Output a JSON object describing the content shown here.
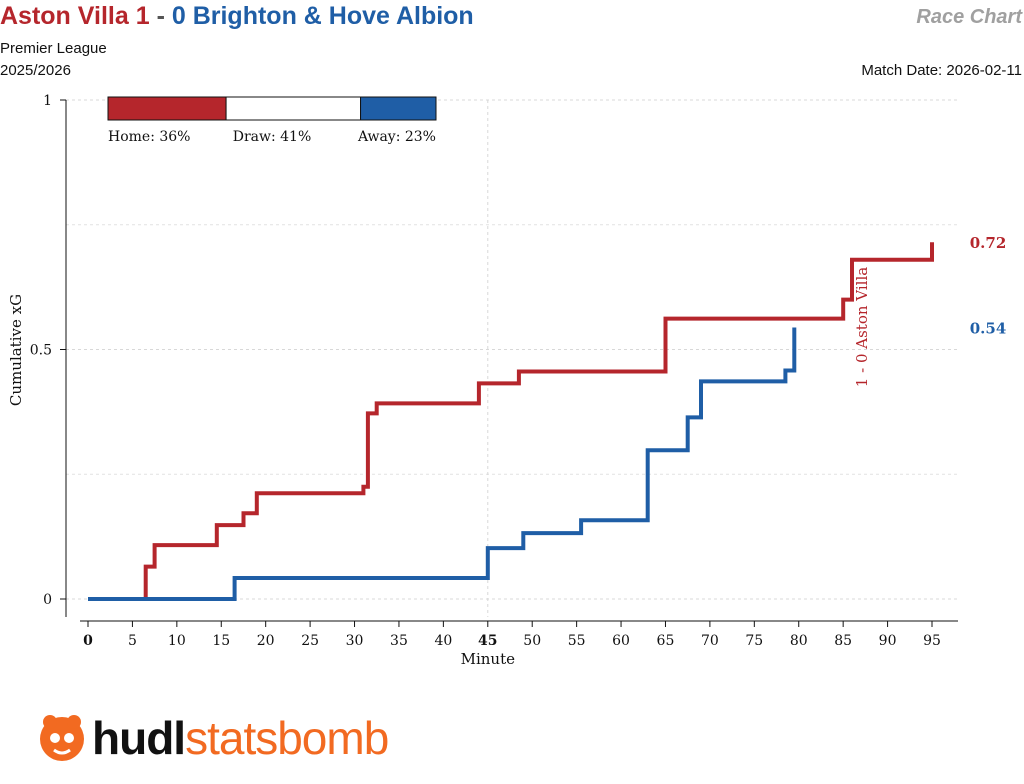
{
  "header": {
    "home_name": "Aston Villa",
    "home_score": "1",
    "separator": "-",
    "away_score": "0",
    "away_name": "Brighton & Hove Albion",
    "chart_type": "Race Chart",
    "competition": "Premier League",
    "season": "2025/2026",
    "match_date": "Match Date: 2026-02-11"
  },
  "probabilities": {
    "home_label": "Home: 36%",
    "draw_label": "Draw: 41%",
    "away_label": "Away: 23%",
    "home": 0.36,
    "draw": 0.41,
    "away": 0.23
  },
  "logo": {
    "brand_left": "hudl",
    "brand_right": "statsbomb"
  },
  "colors": {
    "home": "#b5262c",
    "away": "#1f5ea6",
    "brand_orange": "#f26a21"
  },
  "chart_data": {
    "type": "line",
    "title": "",
    "xlabel": "Minute",
    "ylabel": "Cumulative xG",
    "xlim": [
      0,
      97
    ],
    "ylim": [
      0,
      1
    ],
    "x_ticks": [
      "0",
      "5",
      "10",
      "15",
      "20",
      "25",
      "30",
      "35",
      "40",
      "45",
      "50",
      "55",
      "60",
      "65",
      "70",
      "75",
      "80",
      "85",
      "90",
      "95"
    ],
    "y_ticks": [
      "0",
      "0.5",
      "1"
    ],
    "grid": true,
    "series": [
      {
        "name": "Aston Villa",
        "color": "#b5262c",
        "final_label": "0.72",
        "points": [
          [
            0,
            0
          ],
          [
            6.5,
            0
          ],
          [
            6.5,
            0.065
          ],
          [
            7.5,
            0.065
          ],
          [
            7.5,
            0.108
          ],
          [
            14.5,
            0.108
          ],
          [
            14.5,
            0.148
          ],
          [
            17.5,
            0.148
          ],
          [
            17.5,
            0.172
          ],
          [
            19,
            0.172
          ],
          [
            19,
            0.212
          ],
          [
            31,
            0.212
          ],
          [
            31,
            0.225
          ],
          [
            31.5,
            0.225
          ],
          [
            31.5,
            0.372
          ],
          [
            32.5,
            0.372
          ],
          [
            32.5,
            0.392
          ],
          [
            44,
            0.392
          ],
          [
            44,
            0.432
          ],
          [
            48.5,
            0.432
          ],
          [
            48.5,
            0.456
          ],
          [
            65,
            0.456
          ],
          [
            65,
            0.562
          ],
          [
            85,
            0.562
          ],
          [
            85,
            0.6
          ],
          [
            86,
            0.6
          ],
          [
            86,
            0.68
          ],
          [
            95,
            0.68
          ],
          [
            95,
            0.715
          ]
        ]
      },
      {
        "name": "Brighton & Hove Albion",
        "color": "#1f5ea6",
        "final_label": "0.54",
        "points": [
          [
            0,
            0
          ],
          [
            16.5,
            0
          ],
          [
            16.5,
            0.042
          ],
          [
            45,
            0.042
          ],
          [
            45,
            0.102
          ],
          [
            49,
            0.102
          ],
          [
            49,
            0.132
          ],
          [
            55.5,
            0.132
          ],
          [
            55.5,
            0.158
          ],
          [
            63,
            0.158
          ],
          [
            63,
            0.298
          ],
          [
            67.5,
            0.298
          ],
          [
            67.5,
            0.364
          ],
          [
            69,
            0.364
          ],
          [
            69,
            0.436
          ],
          [
            78.5,
            0.436
          ],
          [
            78.5,
            0.458
          ],
          [
            79.5,
            0.458
          ],
          [
            79.5,
            0.544
          ]
        ]
      }
    ],
    "annotations": [
      {
        "text": "1 - 0 Aston Villa",
        "minute": 86,
        "color": "#b5262c"
      }
    ]
  }
}
